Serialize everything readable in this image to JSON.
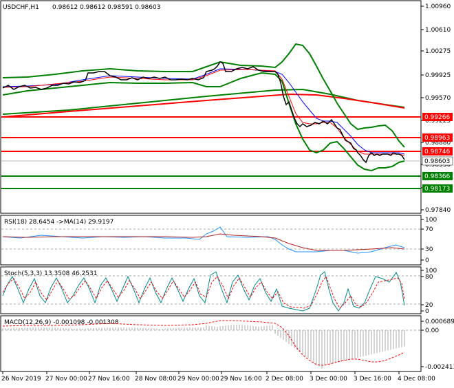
{
  "header": {
    "symbol": "USDCHF,H1",
    "ohlc": "0.98612 0.98612 0.98591 0.98603"
  },
  "price_axis": {
    "ticks": [
      "1.00960",
      "1.00610",
      "1.00275",
      "0.99925",
      "0.99570",
      "0.99225",
      "0.98880",
      "0.98530",
      "0.98180",
      "0.97840"
    ],
    "current": "0.98603",
    "levels": [
      {
        "label": "0.99266",
        "color": "#ff0000"
      },
      {
        "label": "0.98963",
        "color": "#ff0000"
      },
      {
        "label": "0.98746",
        "color": "#ff0000"
      },
      {
        "label": "0.98366",
        "color": "#008000"
      },
      {
        "label": "0.98173",
        "color": "#008000"
      }
    ]
  },
  "rsi": {
    "title": "RSI(18) 28.6454 ->MA(14) 29.9197",
    "ticks": [
      "100",
      "70",
      "30",
      "0"
    ]
  },
  "stoch": {
    "title": "Stoch(5,3,3) 13.3508 46.2531",
    "ticks": [
      "100",
      "80",
      "20",
      "0"
    ]
  },
  "macd": {
    "title": "MACD(12,26,9) -0.001098 -0.001308",
    "ticks": [
      "0.000689",
      "0.00",
      "-0.002413"
    ]
  },
  "time_axis": [
    "26 Nov 2019",
    "27 Nov 00:00",
    "27 Nov 16:00",
    "28 Nov 08:00",
    "29 Nov 00:00",
    "29 Nov 16:00",
    "2 Dec 08:00",
    "3 Dec 00:00",
    "3 Dec 16:00",
    "4 Dec 08:00"
  ],
  "colors": {
    "resistance": "#ff0000",
    "support": "#008000",
    "bands": "#008000",
    "ma_blue": "#0000ff",
    "ma_red": "#ff0000",
    "rsi": "#1e90ff",
    "stoch_signal": "#ff0000"
  }
}
